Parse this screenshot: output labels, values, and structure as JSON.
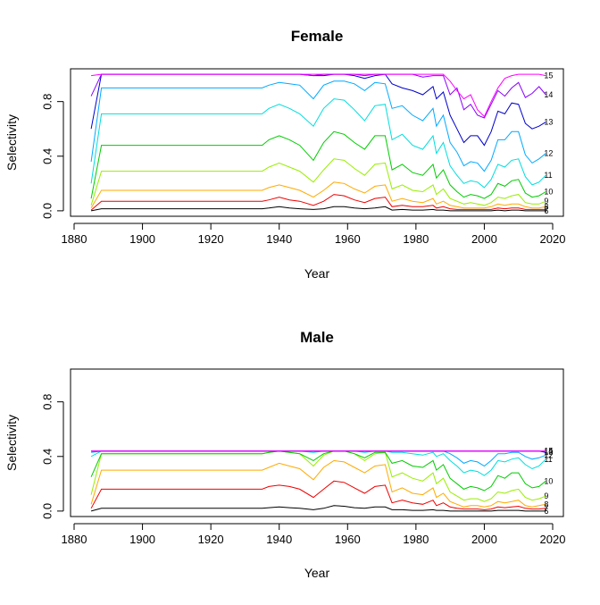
{
  "chart_data": [
    {
      "type": "line",
      "title": "Female",
      "xlabel": "Year",
      "ylabel": "Selectivity",
      "xlim": [
        1880,
        2020
      ],
      "ylim": [
        0,
        1
      ],
      "x_ticks": [
        "1880",
        "1900",
        "1920",
        "1940",
        "1960",
        "1980",
        "2000",
        "2020"
      ],
      "y_ticks": [
        "0.0",
        "0.4",
        "0.8"
      ],
      "grid": false,
      "x": [
        1885,
        1888,
        1935,
        1937,
        1940,
        1943,
        1946,
        1950,
        1953,
        1956,
        1959,
        1962,
        1965,
        1968,
        1971,
        1973,
        1976,
        1979,
        1982,
        1985,
        1986,
        1988,
        1990,
        1992,
        1994,
        1996,
        1998,
        2000,
        2002,
        2004,
        2006,
        2008,
        2010,
        2012,
        2014,
        2016,
        2018
      ],
      "series": [
        {
          "name": "15",
          "color": "#ff00ff",
          "values": [
            0.99,
            1.0,
            1.0,
            1.0,
            1.0,
            1.0,
            1.0,
            1.0,
            1.0,
            1.0,
            1.0,
            1.0,
            1.0,
            1.0,
            1.0,
            1.0,
            1.0,
            1.0,
            1.0,
            1.0,
            1.0,
            1.0,
            0.95,
            0.88,
            0.82,
            0.85,
            0.74,
            0.69,
            0.8,
            0.9,
            0.97,
            0.99,
            1.0,
            1.0,
            1.0,
            1.0,
            0.99
          ]
        },
        {
          "name": "14",
          "color": "#8800ff",
          "values": [
            0.84,
            1.0,
            1.0,
            1.0,
            1.0,
            1.0,
            1.0,
            0.99,
            1.0,
            1.0,
            1.0,
            1.0,
            0.99,
            1.0,
            1.0,
            1.0,
            1.0,
            1.0,
            0.98,
            0.99,
            0.99,
            0.99,
            0.85,
            0.9,
            0.74,
            0.78,
            0.7,
            0.68,
            0.78,
            0.88,
            0.84,
            0.9,
            0.94,
            0.83,
            0.86,
            0.91,
            0.85
          ]
        },
        {
          "name": "13",
          "color": "#0000cc",
          "values": [
            0.6,
            1.0,
            1.0,
            1.0,
            1.0,
            1.0,
            1.0,
            0.99,
            0.99,
            1.0,
            1.0,
            0.99,
            0.97,
            0.99,
            1.0,
            0.93,
            0.9,
            0.88,
            0.85,
            0.91,
            0.82,
            0.87,
            0.7,
            0.6,
            0.5,
            0.55,
            0.55,
            0.48,
            0.58,
            0.73,
            0.71,
            0.79,
            0.78,
            0.64,
            0.6,
            0.62,
            0.65
          ]
        },
        {
          "name": "12",
          "color": "#00aaff",
          "values": [
            0.36,
            0.9,
            0.9,
            0.92,
            0.94,
            0.93,
            0.92,
            0.82,
            0.92,
            0.95,
            0.95,
            0.93,
            0.88,
            0.94,
            0.93,
            0.75,
            0.77,
            0.7,
            0.66,
            0.75,
            0.62,
            0.7,
            0.5,
            0.43,
            0.33,
            0.36,
            0.35,
            0.29,
            0.37,
            0.52,
            0.52,
            0.58,
            0.58,
            0.41,
            0.35,
            0.38,
            0.42
          ]
        },
        {
          "name": "11",
          "color": "#00dddd",
          "values": [
            0.2,
            0.71,
            0.71,
            0.75,
            0.78,
            0.75,
            0.71,
            0.62,
            0.75,
            0.82,
            0.81,
            0.74,
            0.66,
            0.77,
            0.78,
            0.52,
            0.56,
            0.48,
            0.45,
            0.55,
            0.42,
            0.5,
            0.33,
            0.26,
            0.2,
            0.22,
            0.21,
            0.17,
            0.23,
            0.34,
            0.32,
            0.37,
            0.38,
            0.25,
            0.19,
            0.21,
            0.26
          ]
        },
        {
          "name": "10",
          "color": "#00cc00",
          "values": [
            0.09,
            0.48,
            0.48,
            0.52,
            0.55,
            0.52,
            0.48,
            0.37,
            0.5,
            0.58,
            0.56,
            0.5,
            0.45,
            0.55,
            0.55,
            0.3,
            0.34,
            0.28,
            0.26,
            0.34,
            0.24,
            0.3,
            0.19,
            0.14,
            0.1,
            0.12,
            0.11,
            0.09,
            0.12,
            0.2,
            0.18,
            0.22,
            0.23,
            0.13,
            0.1,
            0.11,
            0.14
          ]
        },
        {
          "name": "9",
          "color": "#99ee00",
          "values": [
            0.04,
            0.29,
            0.29,
            0.32,
            0.35,
            0.32,
            0.29,
            0.21,
            0.3,
            0.38,
            0.37,
            0.31,
            0.26,
            0.34,
            0.35,
            0.16,
            0.19,
            0.15,
            0.14,
            0.19,
            0.12,
            0.16,
            0.09,
            0.07,
            0.05,
            0.06,
            0.05,
            0.04,
            0.06,
            0.1,
            0.09,
            0.11,
            0.12,
            0.06,
            0.05,
            0.05,
            0.07
          ]
        },
        {
          "name": "8",
          "color": "#ffaa00",
          "values": [
            0.02,
            0.15,
            0.15,
            0.17,
            0.19,
            0.17,
            0.15,
            0.1,
            0.15,
            0.21,
            0.2,
            0.16,
            0.13,
            0.18,
            0.19,
            0.07,
            0.09,
            0.07,
            0.06,
            0.09,
            0.05,
            0.07,
            0.04,
            0.03,
            0.02,
            0.02,
            0.02,
            0.02,
            0.03,
            0.05,
            0.04,
            0.05,
            0.05,
            0.03,
            0.02,
            0.02,
            0.03
          ]
        },
        {
          "name": "7",
          "color": "#ee0000",
          "values": [
            0.005,
            0.07,
            0.07,
            0.08,
            0.1,
            0.08,
            0.07,
            0.04,
            0.07,
            0.12,
            0.11,
            0.08,
            0.06,
            0.09,
            0.1,
            0.03,
            0.04,
            0.03,
            0.03,
            0.04,
            0.02,
            0.03,
            0.015,
            0.01,
            0.01,
            0.01,
            0.01,
            0.01,
            0.01,
            0.02,
            0.015,
            0.02,
            0.02,
            0.01,
            0.01,
            0.01,
            0.01
          ]
        },
        {
          "name": "6",
          "color": "#000000",
          "values": [
            0.0,
            0.015,
            0.015,
            0.02,
            0.03,
            0.02,
            0.015,
            0.01,
            0.015,
            0.03,
            0.03,
            0.02,
            0.015,
            0.02,
            0.03,
            0.005,
            0.01,
            0.005,
            0.005,
            0.01,
            0.005,
            0.005,
            0.0,
            0.0,
            0.0,
            0.0,
            0.0,
            0.0,
            0.0,
            0.005,
            0.0,
            0.005,
            0.005,
            0.0,
            0.0,
            0.0,
            0.0
          ]
        }
      ]
    },
    {
      "type": "line",
      "title": "Male",
      "xlabel": "Year",
      "ylabel": "Selectivity",
      "xlim": [
        1880,
        2020
      ],
      "ylim": [
        0,
        1
      ],
      "x_ticks": [
        "1880",
        "1900",
        "1920",
        "1940",
        "1960",
        "1980",
        "2000",
        "2020"
      ],
      "y_ticks": [
        "0.0",
        "0.4",
        "0.8"
      ],
      "grid": false,
      "x": [
        1885,
        1888,
        1935,
        1937,
        1940,
        1943,
        1946,
        1950,
        1953,
        1956,
        1959,
        1962,
        1965,
        1968,
        1971,
        1973,
        1976,
        1979,
        1982,
        1985,
        1986,
        1988,
        1990,
        1992,
        1994,
        1996,
        1998,
        2000,
        2002,
        2004,
        2006,
        2008,
        2010,
        2012,
        2014,
        2016,
        2018
      ],
      "series": [
        {
          "name": "15",
          "color": "#ff00ff",
          "values": [
            0.44,
            0.44,
            0.44,
            0.44,
            0.44,
            0.44,
            0.44,
            0.44,
            0.44,
            0.44,
            0.44,
            0.44,
            0.44,
            0.44,
            0.44,
            0.44,
            0.44,
            0.44,
            0.44,
            0.44,
            0.44,
            0.44,
            0.44,
            0.44,
            0.44,
            0.44,
            0.44,
            0.44,
            0.44,
            0.44,
            0.44,
            0.44,
            0.44,
            0.44,
            0.44,
            0.44,
            0.44
          ]
        },
        {
          "name": "14",
          "color": "#8800ff",
          "values": [
            0.44,
            0.44,
            0.44,
            0.44,
            0.44,
            0.44,
            0.44,
            0.44,
            0.44,
            0.44,
            0.44,
            0.44,
            0.44,
            0.44,
            0.44,
            0.44,
            0.44,
            0.44,
            0.44,
            0.44,
            0.44,
            0.44,
            0.44,
            0.44,
            0.44,
            0.44,
            0.44,
            0.44,
            0.44,
            0.44,
            0.44,
            0.44,
            0.44,
            0.44,
            0.44,
            0.44,
            0.44
          ]
        },
        {
          "name": "13",
          "color": "#0000cc",
          "values": [
            0.44,
            0.44,
            0.44,
            0.44,
            0.44,
            0.44,
            0.44,
            0.44,
            0.44,
            0.44,
            0.44,
            0.44,
            0.44,
            0.44,
            0.44,
            0.44,
            0.44,
            0.44,
            0.44,
            0.44,
            0.44,
            0.44,
            0.44,
            0.44,
            0.44,
            0.44,
            0.44,
            0.44,
            0.44,
            0.44,
            0.44,
            0.44,
            0.44,
            0.44,
            0.44,
            0.44,
            0.43
          ]
        },
        {
          "name": "12",
          "color": "#00aaff",
          "values": [
            0.43,
            0.44,
            0.44,
            0.44,
            0.44,
            0.44,
            0.44,
            0.44,
            0.44,
            0.44,
            0.44,
            0.44,
            0.44,
            0.44,
            0.44,
            0.44,
            0.44,
            0.44,
            0.44,
            0.44,
            0.44,
            0.44,
            0.42,
            0.39,
            0.35,
            0.37,
            0.36,
            0.33,
            0.37,
            0.42,
            0.42,
            0.43,
            0.43,
            0.4,
            0.38,
            0.39,
            0.41
          ]
        },
        {
          "name": "11",
          "color": "#00dddd",
          "values": [
            0.4,
            0.44,
            0.44,
            0.44,
            0.44,
            0.44,
            0.44,
            0.43,
            0.44,
            0.44,
            0.44,
            0.44,
            0.43,
            0.44,
            0.44,
            0.43,
            0.43,
            0.42,
            0.41,
            0.43,
            0.4,
            0.42,
            0.37,
            0.33,
            0.28,
            0.3,
            0.29,
            0.26,
            0.3,
            0.37,
            0.36,
            0.38,
            0.39,
            0.34,
            0.31,
            0.33,
            0.38
          ]
        },
        {
          "name": "10",
          "color": "#00cc00",
          "values": [
            0.25,
            0.42,
            0.42,
            0.43,
            0.44,
            0.43,
            0.42,
            0.37,
            0.42,
            0.44,
            0.44,
            0.42,
            0.39,
            0.43,
            0.43,
            0.35,
            0.37,
            0.33,
            0.32,
            0.37,
            0.3,
            0.34,
            0.24,
            0.2,
            0.16,
            0.18,
            0.17,
            0.15,
            0.18,
            0.26,
            0.24,
            0.28,
            0.28,
            0.2,
            0.17,
            0.18,
            0.22
          ]
        },
        {
          "name": "9",
          "color": "#99ee00",
          "values": [
            0.12,
            0.42,
            0.42,
            0.43,
            0.44,
            0.43,
            0.42,
            0.33,
            0.41,
            0.44,
            0.44,
            0.42,
            0.37,
            0.42,
            0.43,
            0.25,
            0.28,
            0.24,
            0.22,
            0.28,
            0.2,
            0.24,
            0.14,
            0.11,
            0.08,
            0.09,
            0.09,
            0.07,
            0.09,
            0.14,
            0.13,
            0.15,
            0.16,
            0.1,
            0.08,
            0.09,
            0.11
          ]
        },
        {
          "name": "8",
          "color": "#ffaa00",
          "values": [
            0.05,
            0.3,
            0.3,
            0.32,
            0.35,
            0.33,
            0.31,
            0.23,
            0.32,
            0.37,
            0.36,
            0.32,
            0.28,
            0.33,
            0.34,
            0.14,
            0.17,
            0.13,
            0.12,
            0.17,
            0.1,
            0.13,
            0.07,
            0.05,
            0.03,
            0.04,
            0.04,
            0.03,
            0.04,
            0.07,
            0.06,
            0.07,
            0.08,
            0.04,
            0.03,
            0.04,
            0.05
          ]
        },
        {
          "name": "7",
          "color": "#ee0000",
          "values": [
            0.02,
            0.16,
            0.16,
            0.18,
            0.19,
            0.18,
            0.16,
            0.1,
            0.16,
            0.22,
            0.21,
            0.17,
            0.13,
            0.18,
            0.19,
            0.06,
            0.08,
            0.06,
            0.05,
            0.08,
            0.04,
            0.06,
            0.03,
            0.02,
            0.015,
            0.015,
            0.015,
            0.01,
            0.015,
            0.03,
            0.025,
            0.03,
            0.035,
            0.02,
            0.015,
            0.015,
            0.02
          ]
        },
        {
          "name": "6",
          "color": "#000000",
          "values": [
            0.0,
            0.02,
            0.02,
            0.025,
            0.03,
            0.025,
            0.02,
            0.01,
            0.02,
            0.04,
            0.035,
            0.025,
            0.02,
            0.03,
            0.03,
            0.01,
            0.01,
            0.005,
            0.005,
            0.01,
            0.005,
            0.005,
            0.0,
            0.0,
            0.0,
            0.0,
            0.0,
            0.0,
            0.0,
            0.005,
            0.005,
            0.005,
            0.005,
            0.0,
            0.0,
            0.0,
            0.0
          ]
        }
      ]
    }
  ]
}
